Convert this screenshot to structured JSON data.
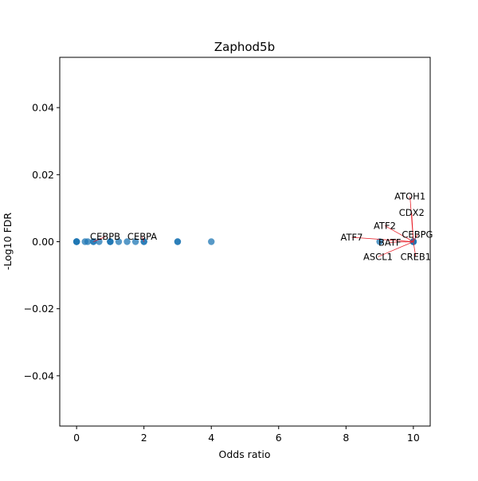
{
  "chart_data": {
    "type": "scatter",
    "title": "Zaphod5b",
    "xlabel": "Odds ratio",
    "ylabel": "-Log10 FDR",
    "xlim": [
      -0.5,
      10.5
    ],
    "ylim": [
      -0.055,
      0.055
    ],
    "xticks": [
      0,
      2,
      4,
      6,
      8,
      10
    ],
    "xtick_labels": [
      "0",
      "2",
      "4",
      "6",
      "8",
      "10"
    ],
    "yticks": [
      -0.04,
      -0.02,
      0.0,
      0.02,
      0.04
    ],
    "ytick_labels": [
      "−0.04",
      "−0.02",
      "0.00",
      "0.02",
      "0.04"
    ],
    "grid": false,
    "marker_color": "#1f77b4",
    "arrow_color": "#e8212a",
    "points": [
      {
        "x": 0,
        "y": 0
      },
      {
        "x": 0,
        "y": 0
      },
      {
        "x": 0,
        "y": 0
      },
      {
        "x": 0,
        "y": 0
      },
      {
        "x": 0.25,
        "y": 0
      },
      {
        "x": 0.33,
        "y": 0
      },
      {
        "x": 0.5,
        "y": 0
      },
      {
        "x": 0.5,
        "y": 0
      },
      {
        "x": 0.67,
        "y": 0
      },
      {
        "x": 1,
        "y": 0
      },
      {
        "x": 1,
        "y": 0
      },
      {
        "x": 1,
        "y": 0
      },
      {
        "x": 1.25,
        "y": 0
      },
      {
        "x": 1.5,
        "y": 0
      },
      {
        "x": 1.75,
        "y": 0
      },
      {
        "x": 2,
        "y": 0
      },
      {
        "x": 2,
        "y": 0
      },
      {
        "x": 3,
        "y": 0
      },
      {
        "x": 3,
        "y": 0
      },
      {
        "x": 4,
        "y": 0
      },
      {
        "x": 9,
        "y": 0
      },
      {
        "x": 10,
        "y": 0
      },
      {
        "x": 10,
        "y": 0
      },
      {
        "x": 10,
        "y": 0
      },
      {
        "x": 10,
        "y": 0
      },
      {
        "x": 10,
        "y": 0
      },
      {
        "x": 10,
        "y": 0
      }
    ],
    "annotations": [
      {
        "text": "CEBPB",
        "x": 0.5,
        "y": 0,
        "tx": 0.85,
        "ty": 0.0015
      },
      {
        "text": "CEBPA",
        "x": 2,
        "y": 0,
        "tx": 1.95,
        "ty": 0.0015
      },
      {
        "text": "ATOH1",
        "x": 10,
        "y": 0,
        "tx": 9.9,
        "ty": 0.0135
      },
      {
        "text": "CDX2",
        "x": 10,
        "y": 0,
        "tx": 9.95,
        "ty": 0.0087
      },
      {
        "text": "ATF2",
        "x": 10,
        "y": 0,
        "tx": 9.15,
        "ty": 0.0048
      },
      {
        "text": "CEBPG",
        "x": 10,
        "y": 0,
        "tx": 10.12,
        "ty": 0.0021
      },
      {
        "text": "ATF7",
        "x": 10,
        "y": 0,
        "tx": 8.17,
        "ty": 0.0013
      },
      {
        "text": "BATF",
        "x": 10,
        "y": 0,
        "tx": 9.3,
        "ty": -0.0002
      },
      {
        "text": "ASCL1",
        "x": 10,
        "y": 0,
        "tx": 8.95,
        "ty": -0.0045
      },
      {
        "text": "CREB1",
        "x": 10,
        "y": 0,
        "tx": 10.07,
        "ty": -0.0045
      }
    ]
  }
}
